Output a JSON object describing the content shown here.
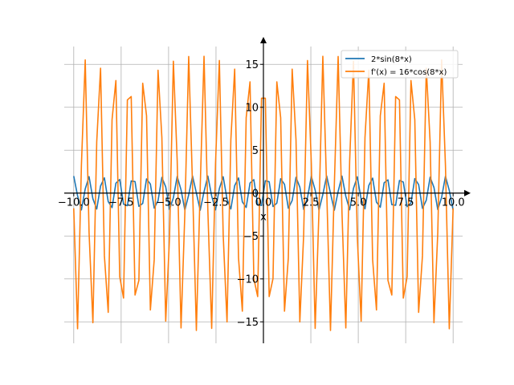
{
  "chart_data": {
    "type": "line",
    "xlabel": "x",
    "ylabel": "",
    "xlim": [
      -10.5,
      10.5
    ],
    "ylim": [
      -17.5,
      18.2
    ],
    "grid": true,
    "legend_placement": "top-right",
    "xticks": [
      -10.0,
      -7.5,
      -5.0,
      -2.5,
      0.0,
      2.5,
      5.0,
      7.5,
      10.0
    ],
    "xtick_labels": [
      "−10.0",
      "−7.5",
      "−5.0",
      "−2.5",
      "0.0",
      "2.5",
      "5.0",
      "7.5",
      "10.0"
    ],
    "yticks": [
      -15,
      -10,
      -5,
      0,
      5,
      10,
      15
    ],
    "ytick_labels": [
      "−15",
      "−10",
      "−5",
      "0",
      "5",
      "10",
      "15"
    ],
    "x_range": [
      -10,
      10
    ],
    "sample_count": 100,
    "series": [
      {
        "name": "2*sin(8*x)",
        "amplitude": 2,
        "frequency": 8,
        "kind": "sin",
        "color": "#1f77b4"
      },
      {
        "name": "f'(x) = 16*cos(8*x)",
        "amplitude": 16,
        "frequency": 8,
        "kind": "cos",
        "color": "#ff7f0e"
      }
    ]
  }
}
